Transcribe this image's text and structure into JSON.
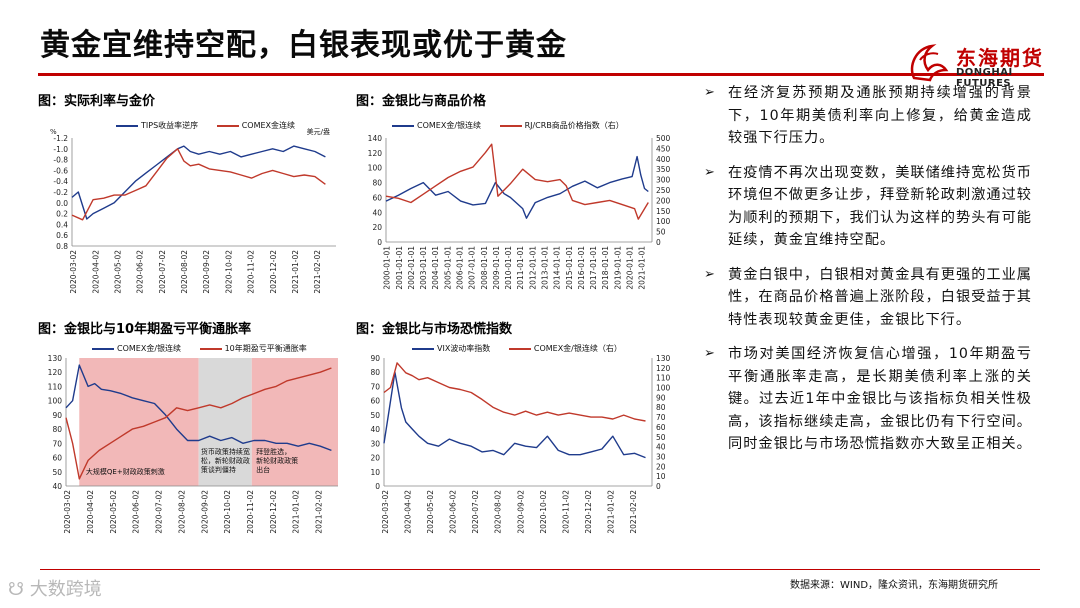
{
  "slide": {
    "title": "黄金宜维持空配，白银表现或优于黄金",
    "source": "数据来源：WIND，隆众资讯，东海期货研究所",
    "watermark": "大数跨境"
  },
  "logo": {
    "cn": "东海期货",
    "en": "DONGHAI FUTURES"
  },
  "bullets": [
    "在经济复苏预期及通胀预期持续增强的背景下，10年期美债利率向上修复，给黄金造成较强下行压力。",
    "在疫情不再次出现变数，美联储维持宽松货币环境但不做更多让步，拜登新轮政刺激通过较为顺利的预期下，我们认为这样的势头有可能延续，黄金宜维持空配。",
    "黄金白银中，白银相对黄金具有更强的工业属性，在商品价格普遍上涨阶段，白银受益于其特性表现较黄金更佳，金银比下行。",
    "市场对美国经济恢复信心增强，10年期盈亏平衡通胀率走高，是长期美债利率上涨的关键。过去近1年中金银比与该指标负相关性极高，该指标继续走高，金银比仍有下行空间。同时金银比与市场恐慌指数亦大致呈正相关。"
  ],
  "bullet_marker": "➢",
  "colors": {
    "blue": "#1f3b8c",
    "red": "#c0392b",
    "pink": "#f2b8b8",
    "grey": "#d9d9d9"
  },
  "chart_data": [
    {
      "type": "line",
      "title": "图：实际利率与金价",
      "legend": [
        "TIPS收益率逆序",
        "COMEX金连续"
      ],
      "left_unit": "%",
      "right_unit": "美元/盎",
      "y_ticks": [
        "-1.2",
        "-1.0",
        "-0.8",
        "-0.6",
        "-0.4",
        "-0.2",
        "0.0",
        "0.2",
        "0.4",
        "0.6",
        "0.8"
      ],
      "y_inverted": true,
      "x_ticks": [
        "2020-03-02",
        "2020-04-02",
        "2020-05-02",
        "2020-06-02",
        "2020-07-02",
        "2020-08-02",
        "2020-09-02",
        "2020-10-02",
        "2020-11-02",
        "2020-12-02",
        "2021-01-02",
        "2021-02-02"
      ],
      "series": [
        {
          "name": "TIPS收益率逆序",
          "color": "#1f3b8c",
          "x": [
            0,
            0.3,
            0.7,
            1,
            1.5,
            2,
            2.5,
            3,
            3.5,
            4,
            4.5,
            5,
            5.3,
            5.6,
            6,
            6.5,
            7,
            7.5,
            8,
            8.5,
            9,
            9.5,
            10,
            10.5,
            11,
            11.5,
            12
          ],
          "values": [
            -0.1,
            -0.2,
            0.3,
            0.2,
            0.1,
            0.0,
            -0.2,
            -0.4,
            -0.55,
            -0.7,
            -0.85,
            -1.0,
            -1.05,
            -0.95,
            -0.9,
            -0.95,
            -0.9,
            -0.95,
            -0.85,
            -0.9,
            -0.95,
            -1.0,
            -0.95,
            -1.05,
            -1.0,
            -0.95,
            -0.85
          ]
        },
        {
          "name": "COMEX金连续",
          "color": "#c0392b",
          "x": [
            0,
            0.5,
            1,
            1.5,
            2,
            2.5,
            3,
            3.5,
            4,
            4.5,
            5,
            5.3,
            5.6,
            6,
            6.5,
            7,
            7.5,
            8,
            8.5,
            9,
            9.5,
            10,
            10.5,
            11,
            11.5,
            12
          ],
          "values": [
            1600,
            1570,
            1700,
            1710,
            1730,
            1730,
            1760,
            1790,
            1880,
            1970,
            2030,
            1950,
            1920,
            1930,
            1900,
            1890,
            1880,
            1860,
            1840,
            1870,
            1890,
            1870,
            1850,
            1860,
            1850,
            1800
          ]
        }
      ]
    },
    {
      "type": "line",
      "title": "图：金银比与商品价格",
      "legend": [
        "COMEX金/银连续",
        "RJ/CRB商品价格指数（右）"
      ],
      "y_left_ticks": [
        "0",
        "20",
        "40",
        "60",
        "80",
        "100",
        "120",
        "140"
      ],
      "y_right_ticks": [
        "0",
        "50",
        "100",
        "150",
        "200",
        "250",
        "300",
        "350",
        "400",
        "450",
        "500"
      ],
      "x_ticks": [
        "2000-01-01",
        "2001-01-01",
        "2002-01-01",
        "2003-01-01",
        "2004-01-01",
        "2005-01-01",
        "2006-01-01",
        "2007-01-01",
        "2008-01-01",
        "2009-01-01",
        "2010-01-01",
        "2011-01-01",
        "2012-01-01",
        "2013-01-01",
        "2014-01-01",
        "2015-01-01",
        "2016-01-01",
        "2017-01-01",
        "2018-01-01",
        "2019-01-01",
        "2020-01-01",
        "2021-01-01"
      ],
      "series": [
        {
          "name": "COMEX金/银连续",
          "color": "#1f3b8c",
          "x": [
            2000,
            2001,
            2002,
            2003,
            2004,
            2005,
            2006,
            2007,
            2008,
            2008.8,
            2009.5,
            2010,
            2011,
            2011.3,
            2012,
            2013,
            2014,
            2015,
            2016,
            2017,
            2018,
            2019,
            2019.8,
            2020.2,
            2020.5,
            2020.8,
            2021.1
          ],
          "values": [
            55,
            63,
            72,
            80,
            63,
            68,
            55,
            50,
            52,
            80,
            65,
            60,
            45,
            32,
            53,
            60,
            65,
            75,
            82,
            73,
            80,
            85,
            88,
            115,
            90,
            72,
            68
          ]
        },
        {
          "name": "RJ/CRB商品价格指数（右）",
          "color": "#c0392b",
          "x": [
            2000,
            2001,
            2002,
            2003,
            2004,
            2005,
            2006,
            2007,
            2008,
            2008.5,
            2009,
            2010,
            2011,
            2012,
            2013,
            2014,
            2014.5,
            2015,
            2016,
            2017,
            2018,
            2019,
            2020,
            2020.3,
            2021,
            2021.1
          ],
          "values": [
            220,
            210,
            190,
            230,
            270,
            310,
            340,
            360,
            430,
            470,
            220,
            280,
            350,
            300,
            290,
            300,
            270,
            200,
            180,
            190,
            200,
            180,
            160,
            110,
            180,
            190
          ]
        }
      ]
    },
    {
      "type": "line",
      "title": "图：金银比与10年期盈亏平衡通胀率",
      "legend": [
        "COMEX金/银连续",
        "10年期盈亏平衡通胀率"
      ],
      "y_ticks": [
        "40",
        "50",
        "60",
        "70",
        "80",
        "90",
        "100",
        "110",
        "120",
        "130"
      ],
      "x_ticks": [
        "2020-03-02",
        "2020-04-02",
        "2020-05-02",
        "2020-06-02",
        "2020-07-02",
        "2020-08-02",
        "2020-09-02",
        "2020-10-02",
        "2020-11-02",
        "2020-12-02",
        "2021-01-02",
        "2021-02-02"
      ],
      "annotations": [
        "大规模QE+财政政策刺激",
        "货币政策持续宽松，新轮财政政策谈判僵持",
        "拜登胜选，新轮财政政策出台"
      ],
      "series": [
        {
          "name": "COMEX金/银连续",
          "color": "#1f3b8c",
          "x": [
            0,
            0.3,
            0.6,
            1,
            1.3,
            1.6,
            2,
            2.5,
            3,
            3.5,
            4,
            4.5,
            5,
            5.5,
            6,
            6.5,
            7,
            7.5,
            8,
            8.5,
            9,
            9.5,
            10,
            10.5,
            11,
            11.5,
            12
          ],
          "values": [
            95,
            100,
            125,
            110,
            112,
            108,
            107,
            105,
            102,
            100,
            98,
            90,
            80,
            72,
            72,
            75,
            72,
            74,
            70,
            72,
            72,
            70,
            70,
            68,
            70,
            68,
            65
          ]
        },
        {
          "name": "10年期盈亏平衡通胀率",
          "color": "#c0392b",
          "x": [
            0,
            0.3,
            0.6,
            1,
            1.5,
            2,
            2.5,
            3,
            3.5,
            4,
            4.5,
            5,
            5.5,
            6,
            6.5,
            7,
            7.5,
            8,
            8.5,
            9,
            9.5,
            10,
            10.5,
            11,
            11.5,
            12
          ],
          "values": [
            88,
            70,
            45,
            58,
            65,
            70,
            75,
            80,
            82,
            85,
            88,
            95,
            93,
            95,
            97,
            95,
            98,
            102,
            105,
            108,
            110,
            114,
            116,
            118,
            120,
            123
          ]
        }
      ]
    },
    {
      "type": "line",
      "title": "图：金银比与市场恐慌指数",
      "legend": [
        "VIX波动率指数",
        "COMEX金/银连续（右）"
      ],
      "y_left_ticks": [
        "0",
        "10",
        "20",
        "30",
        "40",
        "50",
        "60",
        "70",
        "80",
        "90"
      ],
      "y_right_ticks": [
        "0",
        "10",
        "20",
        "30",
        "40",
        "50",
        "60",
        "70",
        "80",
        "90",
        "100",
        "110",
        "120",
        "130"
      ],
      "x_ticks": [
        "2020-03-02",
        "2020-04-02",
        "2020-05-02",
        "2020-06-02",
        "2020-07-02",
        "2020-08-02",
        "2020-09-02",
        "2020-10-02",
        "2020-11-02",
        "2020-12-02",
        "2021-01-02",
        "2021-02-02"
      ],
      "series": [
        {
          "name": "VIX波动率指数",
          "color": "#1f3b8c",
          "x": [
            0,
            0.2,
            0.5,
            0.8,
            1,
            1.3,
            1.6,
            2,
            2.5,
            3,
            3.5,
            4,
            4.5,
            5,
            5.5,
            6,
            6.5,
            7,
            7.5,
            8,
            8.5,
            9,
            9.5,
            10,
            10.5,
            11,
            11.5,
            12
          ],
          "values": [
            30,
            50,
            80,
            55,
            45,
            40,
            35,
            30,
            28,
            33,
            30,
            28,
            24,
            25,
            22,
            30,
            28,
            27,
            35,
            25,
            22,
            22,
            24,
            26,
            35,
            22,
            23,
            20
          ]
        },
        {
          "name": "COMEX金/银连续（右）",
          "color": "#c0392b",
          "x": [
            0,
            0.3,
            0.6,
            1,
            1.3,
            1.6,
            2,
            2.5,
            3,
            3.5,
            4,
            4.5,
            5,
            5.5,
            6,
            6.5,
            7,
            7.5,
            8,
            8.5,
            9,
            9.5,
            10,
            10.5,
            11,
            11.5,
            12
          ],
          "values": [
            95,
            100,
            125,
            115,
            112,
            108,
            110,
            105,
            100,
            98,
            95,
            88,
            80,
            75,
            72,
            76,
            72,
            75,
            72,
            74,
            72,
            70,
            70,
            68,
            72,
            68,
            66
          ]
        }
      ]
    }
  ]
}
